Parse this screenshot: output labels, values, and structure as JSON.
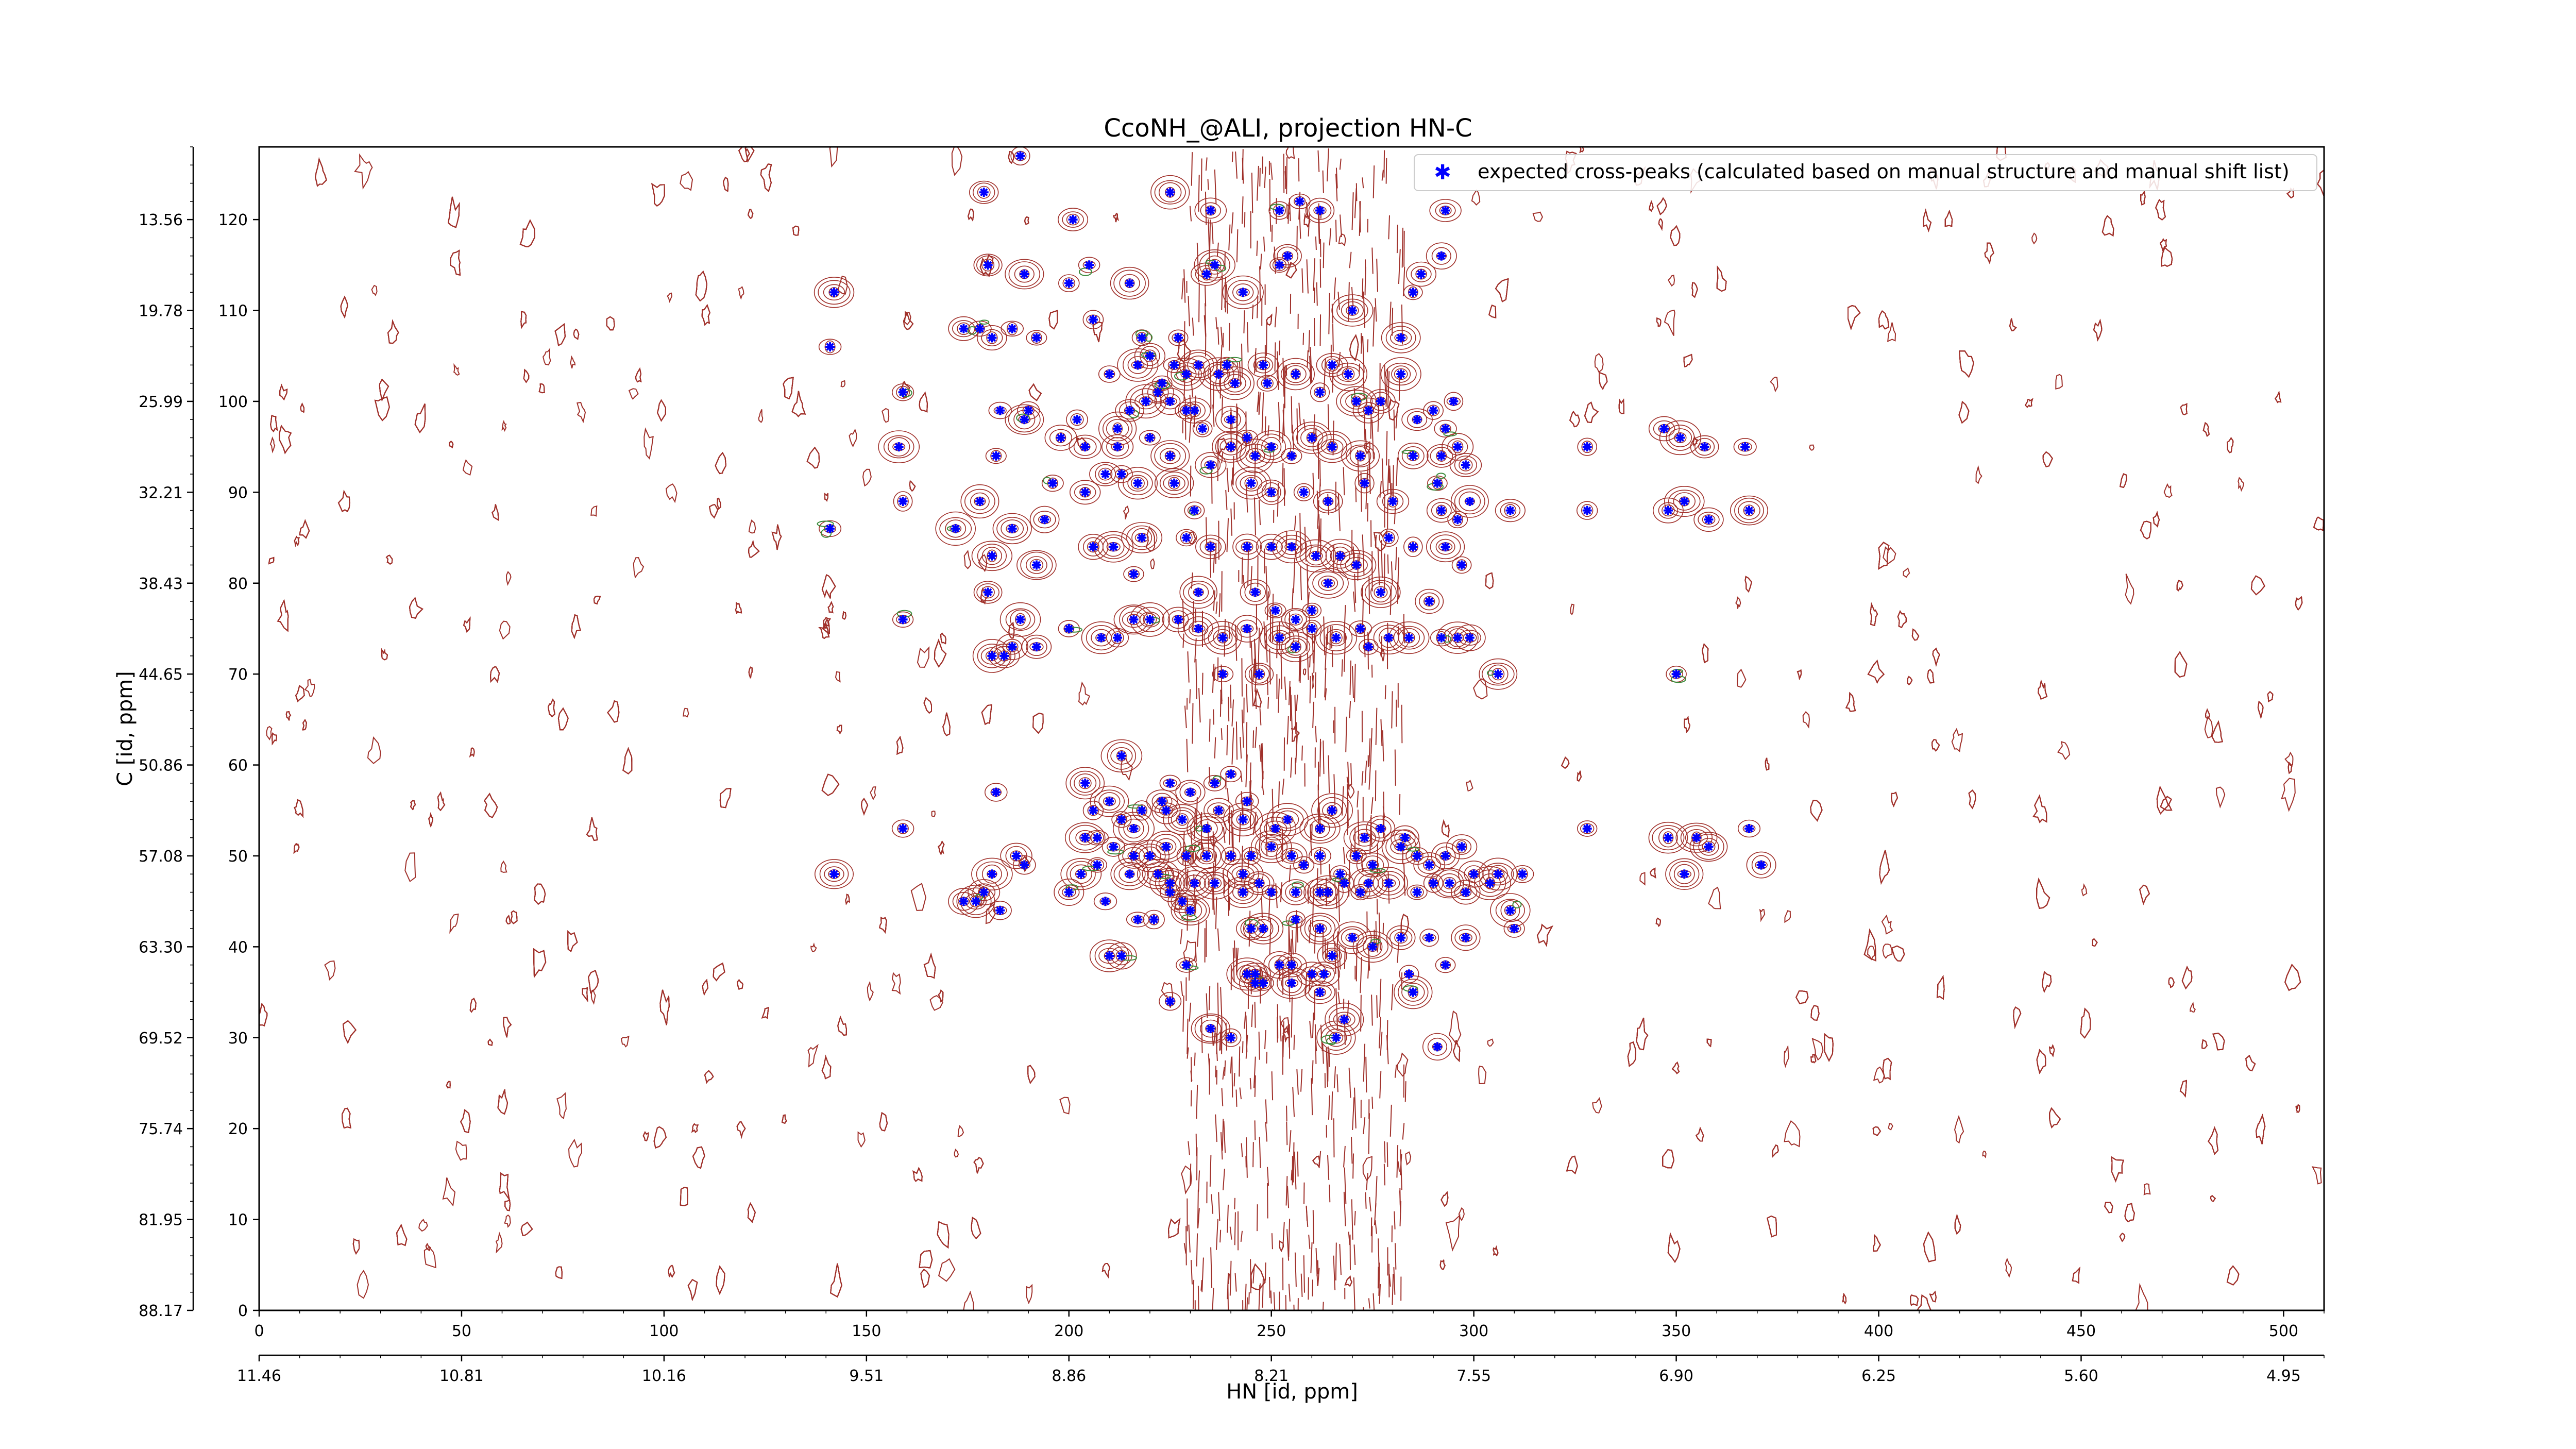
{
  "chart_data": {
    "type": "scatter",
    "title": "CcoNH_@ALI, projection HN-C",
    "xlabel": "",
    "xlabel_secondary": "HN [id, ppm]",
    "ylabel": "C [id, ppm]",
    "xlim": [
      0,
      510
    ],
    "ylim": [
      0,
      128
    ],
    "x_ticks": [
      0,
      50,
      100,
      150,
      200,
      250,
      300,
      350,
      400,
      450,
      500
    ],
    "y_ticks": [
      0,
      10,
      20,
      30,
      40,
      50,
      60,
      70,
      80,
      90,
      100,
      110,
      120
    ],
    "x_ppm_ticks": [
      "11.46",
      "10.81",
      "10.16",
      "9.51",
      "8.86",
      "8.21",
      "7.55",
      "6.90",
      "6.25",
      "5.60",
      "4.95"
    ],
    "y_ppm_ticks": [
      "88.17",
      "81.95",
      "75.74",
      "69.52",
      "63.30",
      "57.08",
      "50.86",
      "44.65",
      "38.43",
      "32.21",
      "25.99",
      "19.78",
      "13.56"
    ],
    "legend": {
      "placement": "top-right",
      "entries": [
        "expected cross-peaks (calculated based on manual structure and manual shift list)"
      ]
    },
    "colors": {
      "peaks": "#0000ff",
      "contour_pos": "#a0302a",
      "contour_neg": "#3a8a3a"
    },
    "grid": false,
    "series": [
      {
        "name": "expected cross-peaks (calculated based on manual structure and manual shift list)",
        "points": [
          [
            188,
            127
          ],
          [
            179,
            123
          ],
          [
            225,
            123
          ],
          [
            235,
            121
          ],
          [
            252,
            121
          ],
          [
            257,
            122
          ],
          [
            262,
            121
          ],
          [
            293,
            121
          ],
          [
            201,
            120
          ],
          [
            205,
            115
          ],
          [
            287,
            114
          ],
          [
            292,
            116
          ],
          [
            142,
            112
          ],
          [
            180,
            115
          ],
          [
            189,
            114
          ],
          [
            200,
            113
          ],
          [
            215,
            113
          ],
          [
            234,
            114
          ],
          [
            236,
            115
          ],
          [
            243,
            112
          ],
          [
            252,
            115
          ],
          [
            254,
            116
          ],
          [
            285,
            112
          ],
          [
            270,
            110
          ],
          [
            141,
            106
          ],
          [
            174,
            108
          ],
          [
            178,
            108
          ],
          [
            181,
            107
          ],
          [
            186,
            108
          ],
          [
            192,
            107
          ],
          [
            206,
            109
          ],
          [
            218,
            107
          ],
          [
            220,
            105
          ],
          [
            227,
            107
          ],
          [
            229,
            103
          ],
          [
            282,
            107
          ],
          [
            159,
            101
          ],
          [
            210,
            103
          ],
          [
            217,
            104
          ],
          [
            222,
            101
          ],
          [
            223,
            102
          ],
          [
            226,
            104
          ],
          [
            229,
            99
          ],
          [
            232,
            104
          ],
          [
            237,
            103
          ],
          [
            239,
            104
          ],
          [
            241,
            102
          ],
          [
            248,
            104
          ],
          [
            249,
            102
          ],
          [
            256,
            103
          ],
          [
            262,
            101
          ],
          [
            265,
            104
          ],
          [
            269,
            103
          ],
          [
            271,
            100
          ],
          [
            274,
            99
          ],
          [
            277,
            100
          ],
          [
            282,
            103
          ],
          [
            286,
            98
          ],
          [
            290,
            99
          ],
          [
            293,
            97
          ],
          [
            295,
            100
          ],
          [
            183,
            99
          ],
          [
            189,
            98
          ],
          [
            190,
            99
          ],
          [
            202,
            98
          ],
          [
            212,
            97
          ],
          [
            215,
            99
          ],
          [
            219,
            100
          ],
          [
            225,
            100
          ],
          [
            231,
            99
          ],
          [
            233,
            97
          ],
          [
            240,
            98
          ],
          [
            244,
            96
          ],
          [
            158,
            95
          ],
          [
            182,
            94
          ],
          [
            198,
            96
          ],
          [
            204,
            95
          ],
          [
            212,
            95
          ],
          [
            220,
            96
          ],
          [
            225,
            94
          ],
          [
            235,
            93
          ],
          [
            240,
            95
          ],
          [
            246,
            94
          ],
          [
            250,
            95
          ],
          [
            255,
            94
          ],
          [
            260,
            96
          ],
          [
            265,
            95
          ],
          [
            272,
            94
          ],
          [
            285,
            94
          ],
          [
            292,
            94
          ],
          [
            296,
            95
          ],
          [
            298,
            93
          ],
          [
            328,
            95
          ],
          [
            347,
            97
          ],
          [
            351,
            96
          ],
          [
            357,
            95
          ],
          [
            367,
            95
          ],
          [
            196,
            91
          ],
          [
            204,
            90
          ],
          [
            209,
            92
          ],
          [
            213,
            92
          ],
          [
            217,
            91
          ],
          [
            226,
            91
          ],
          [
            231,
            88
          ],
          [
            245,
            91
          ],
          [
            250,
            90
          ],
          [
            258,
            90
          ],
          [
            264,
            89
          ],
          [
            273,
            91
          ],
          [
            280,
            89
          ],
          [
            291,
            91
          ],
          [
            292,
            88
          ],
          [
            296,
            87
          ],
          [
            299,
            89
          ],
          [
            309,
            88
          ],
          [
            328,
            88
          ],
          [
            348,
            88
          ],
          [
            352,
            89
          ],
          [
            358,
            87
          ],
          [
            368,
            88
          ],
          [
            178,
            89
          ],
          [
            159,
            89
          ],
          [
            141,
            86
          ],
          [
            172,
            86
          ],
          [
            186,
            86
          ],
          [
            194,
            87
          ],
          [
            206,
            84
          ],
          [
            211,
            84
          ],
          [
            218,
            85
          ],
          [
            229,
            85
          ],
          [
            235,
            84
          ],
          [
            244,
            84
          ],
          [
            250,
            84
          ],
          [
            255,
            84
          ],
          [
            261,
            83
          ],
          [
            267,
            83
          ],
          [
            271,
            82
          ],
          [
            279,
            85
          ],
          [
            285,
            84
          ],
          [
            293,
            84
          ],
          [
            297,
            82
          ],
          [
            181,
            83
          ],
          [
            180,
            79
          ],
          [
            192,
            82
          ],
          [
            216,
            81
          ],
          [
            232,
            79
          ],
          [
            246,
            79
          ],
          [
            251,
            77
          ],
          [
            256,
            76
          ],
          [
            260,
            77
          ],
          [
            264,
            80
          ],
          [
            277,
            79
          ],
          [
            289,
            78
          ],
          [
            159,
            76
          ],
          [
            188,
            76
          ],
          [
            200,
            75
          ],
          [
            208,
            74
          ],
          [
            212,
            74
          ],
          [
            216,
            76
          ],
          [
            220,
            76
          ],
          [
            227,
            76
          ],
          [
            232,
            75
          ],
          [
            238,
            74
          ],
          [
            244,
            75
          ],
          [
            252,
            74
          ],
          [
            256,
            73
          ],
          [
            260,
            75
          ],
          [
            266,
            74
          ],
          [
            272,
            75
          ],
          [
            274,
            73
          ],
          [
            279,
            74
          ],
          [
            284,
            74
          ],
          [
            292,
            74
          ],
          [
            296,
            74
          ],
          [
            299,
            74
          ],
          [
            186,
            73
          ],
          [
            192,
            73
          ],
          [
            181,
            72
          ],
          [
            184,
            72
          ],
          [
            238,
            70
          ],
          [
            247,
            70
          ],
          [
            306,
            70
          ],
          [
            350,
            70
          ],
          [
            213,
            61
          ],
          [
            204,
            58
          ],
          [
            225,
            58
          ],
          [
            230,
            57
          ],
          [
            236,
            58
          ],
          [
            240,
            59
          ],
          [
            244,
            56
          ],
          [
            223,
            56
          ],
          [
            182,
            57
          ],
          [
            206,
            55
          ],
          [
            210,
            56
          ],
          [
            213,
            54
          ],
          [
            216,
            53
          ],
          [
            218,
            55
          ],
          [
            224,
            55
          ],
          [
            228,
            54
          ],
          [
            234,
            53
          ],
          [
            237,
            55
          ],
          [
            243,
            54
          ],
          [
            251,
            53
          ],
          [
            254,
            54
          ],
          [
            262,
            53
          ],
          [
            265,
            55
          ],
          [
            273,
            52
          ],
          [
            277,
            53
          ],
          [
            283,
            52
          ],
          [
            159,
            53
          ],
          [
            328,
            53
          ],
          [
            348,
            52
          ],
          [
            355,
            52
          ],
          [
            358,
            51
          ],
          [
            368,
            53
          ],
          [
            204,
            52
          ],
          [
            207,
            52
          ],
          [
            211,
            51
          ],
          [
            216,
            50
          ],
          [
            220,
            50
          ],
          [
            224,
            51
          ],
          [
            229,
            50
          ],
          [
            234,
            50
          ],
          [
            240,
            50
          ],
          [
            245,
            50
          ],
          [
            250,
            51
          ],
          [
            255,
            50
          ],
          [
            258,
            49
          ],
          [
            262,
            50
          ],
          [
            267,
            48
          ],
          [
            271,
            50
          ],
          [
            275,
            49
          ],
          [
            282,
            51
          ],
          [
            286,
            50
          ],
          [
            289,
            49
          ],
          [
            293,
            50
          ],
          [
            297,
            51
          ],
          [
            187,
            50
          ],
          [
            189,
            49
          ],
          [
            300,
            48
          ],
          [
            306,
            48
          ],
          [
            312,
            48
          ],
          [
            371,
            49
          ],
          [
            142,
            48
          ],
          [
            181,
            48
          ],
          [
            203,
            48
          ],
          [
            207,
            49
          ],
          [
            215,
            48
          ],
          [
            222,
            48
          ],
          [
            225,
            47
          ],
          [
            231,
            47
          ],
          [
            236,
            47
          ],
          [
            243,
            48
          ],
          [
            247,
            47
          ],
          [
            256,
            46
          ],
          [
            262,
            46
          ],
          [
            268,
            47
          ],
          [
            274,
            47
          ],
          [
            279,
            47
          ],
          [
            286,
            46
          ],
          [
            290,
            47
          ],
          [
            294,
            47
          ],
          [
            298,
            46
          ],
          [
            304,
            47
          ],
          [
            352,
            48
          ],
          [
            179,
            46
          ],
          [
            200,
            46
          ],
          [
            225,
            46
          ],
          [
            228,
            45
          ],
          [
            243,
            46
          ],
          [
            250,
            46
          ],
          [
            264,
            46
          ],
          [
            272,
            46
          ],
          [
            174,
            45
          ],
          [
            177,
            45
          ],
          [
            183,
            44
          ],
          [
            209,
            45
          ],
          [
            217,
            43
          ],
          [
            221,
            43
          ],
          [
            230,
            44
          ],
          [
            245,
            42
          ],
          [
            248,
            42
          ],
          [
            256,
            43
          ],
          [
            262,
            42
          ],
          [
            270,
            41
          ],
          [
            275,
            40
          ],
          [
            282,
            41
          ],
          [
            289,
            41
          ],
          [
            298,
            41
          ],
          [
            309,
            44
          ],
          [
            310,
            42
          ],
          [
            213,
            39
          ],
          [
            229,
            38
          ],
          [
            244,
            37
          ],
          [
            246,
            37
          ],
          [
            252,
            38
          ],
          [
            255,
            38
          ],
          [
            260,
            37
          ],
          [
            263,
            37
          ],
          [
            265,
            39
          ],
          [
            284,
            37
          ],
          [
            293,
            38
          ],
          [
            210,
            39
          ],
          [
            225,
            34
          ],
          [
            246,
            36
          ],
          [
            248,
            36
          ],
          [
            255,
            36
          ],
          [
            262,
            35
          ],
          [
            268,
            32
          ],
          [
            285,
            35
          ],
          [
            291,
            29
          ],
          [
            235,
            31
          ],
          [
            240,
            30
          ],
          [
            266,
            30
          ]
        ]
      }
    ]
  }
}
